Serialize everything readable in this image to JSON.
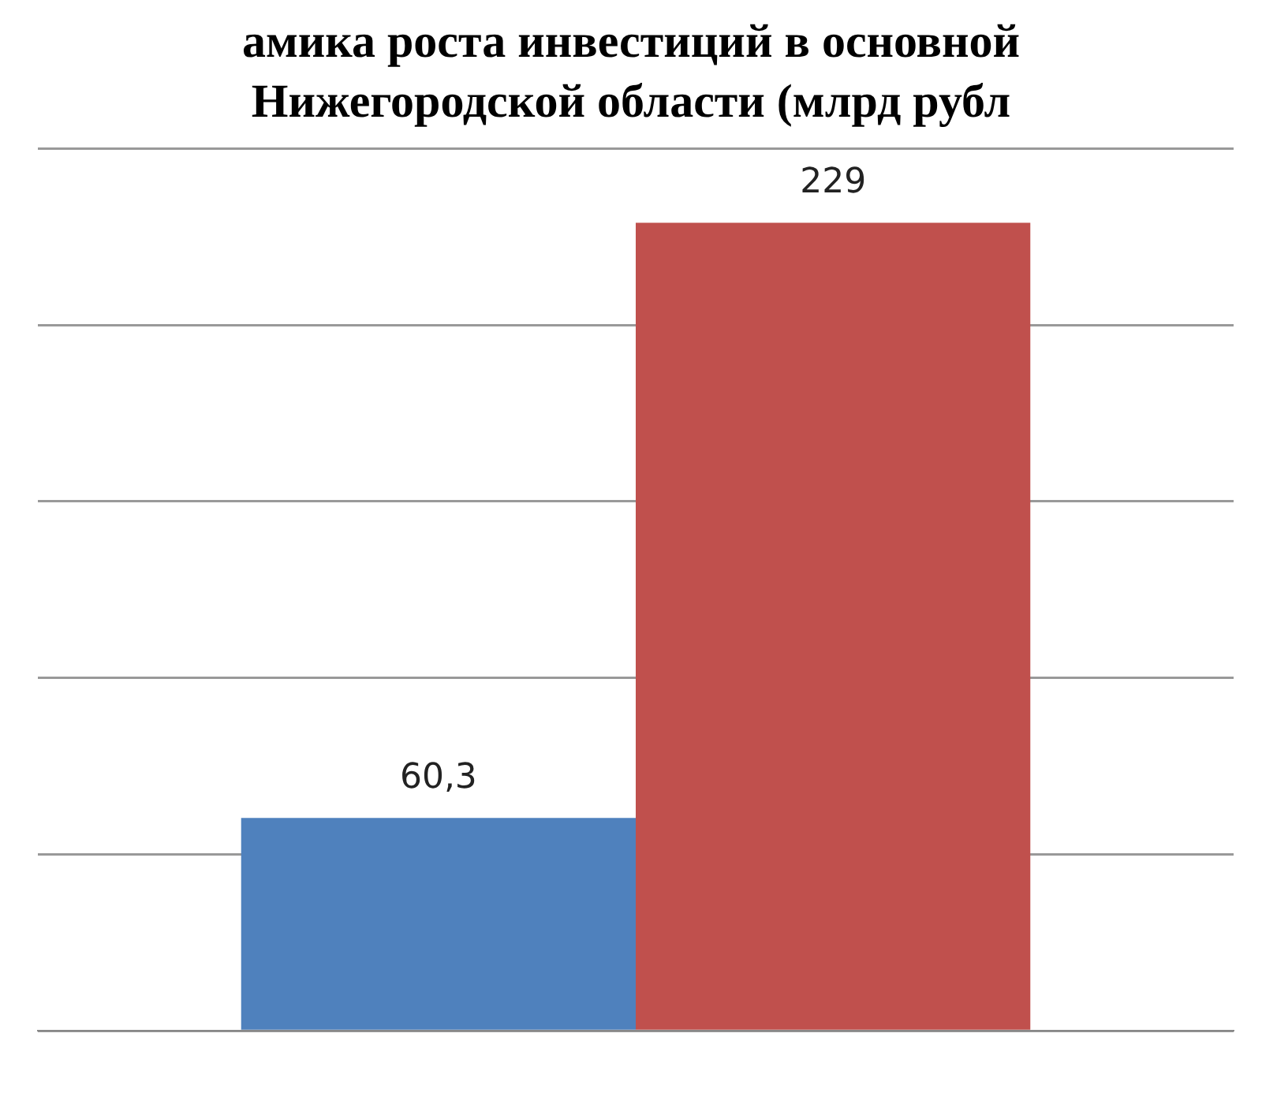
{
  "chart_data": {
    "type": "bar",
    "title": "амика роста инвестиций в основной",
    "subtitle": "Нижегородской области (млрд рубл",
    "categories": [
      null
    ],
    "series": [
      {
        "color": "#4f81bd",
        "values": [
          60.3
        ],
        "value_labels": [
          "60,3"
        ]
      },
      {
        "color": "#c0504d",
        "values": [
          229
        ],
        "value_labels": [
          "229"
        ]
      }
    ],
    "ylim": [
      0,
      250
    ],
    "yticks": [
      {
        "value": 0,
        "label": null
      },
      {
        "value": 50,
        "label": null
      },
      {
        "value": 100,
        "label": null
      },
      {
        "value": 150,
        "label": null
      },
      {
        "value": 200,
        "label": null
      },
      {
        "value": 250,
        "label": null
      }
    ],
    "grid": "y"
  }
}
